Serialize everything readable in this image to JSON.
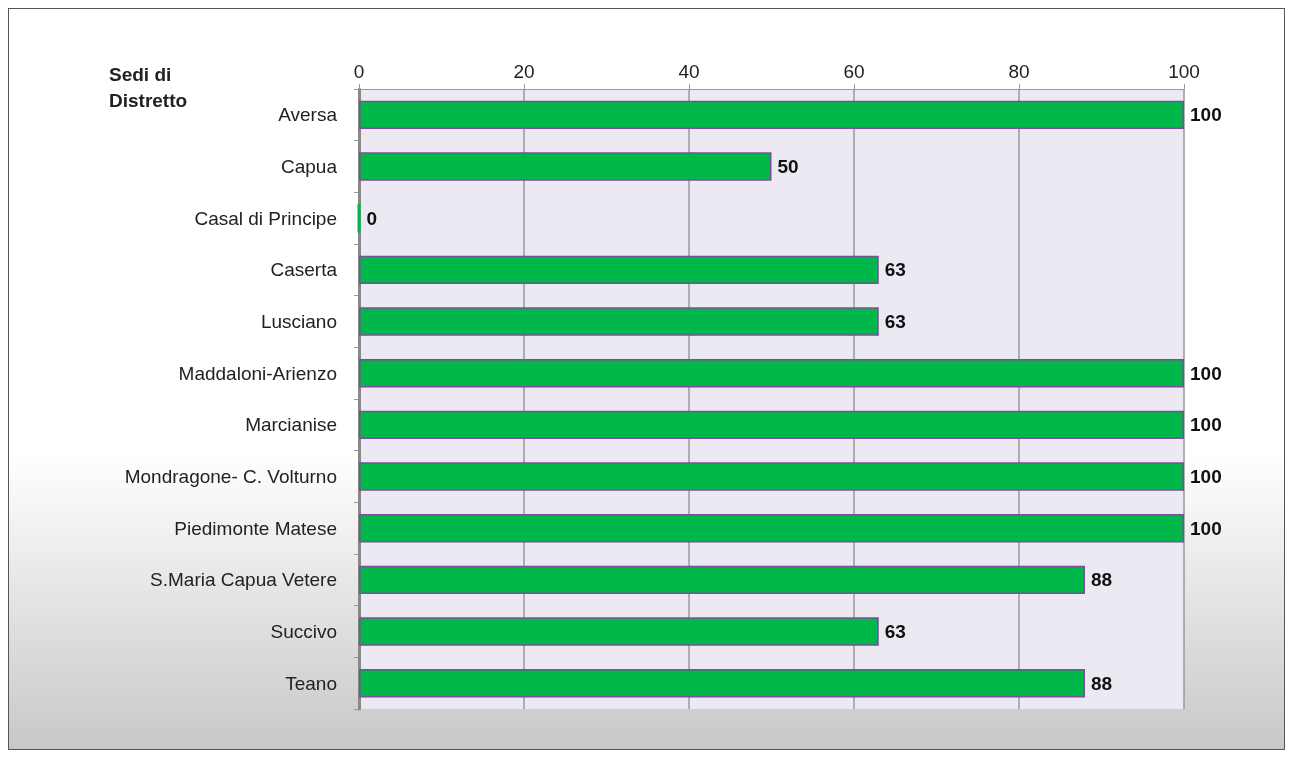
{
  "chart_data": {
    "type": "bar",
    "orientation": "horizontal",
    "ylabel": "Sedi di Distretto",
    "categories": [
      "Aversa",
      "Capua",
      "Casal di Principe",
      "Caserta",
      "Lusciano",
      "Maddaloni-Arienzo",
      "Marcianise",
      "Mondragone- C. Volturno",
      "Piedimonte Matese",
      "S.Maria Capua Vetere",
      "Succivo",
      "Teano"
    ],
    "values": [
      100,
      50,
      0,
      63,
      63,
      100,
      100,
      100,
      100,
      88,
      63,
      88
    ],
    "color": "#00b74a",
    "xlim": [
      0,
      100
    ],
    "xticks": [
      0,
      20,
      40,
      60,
      80,
      100
    ],
    "grid": "x",
    "data_labels": true
  }
}
